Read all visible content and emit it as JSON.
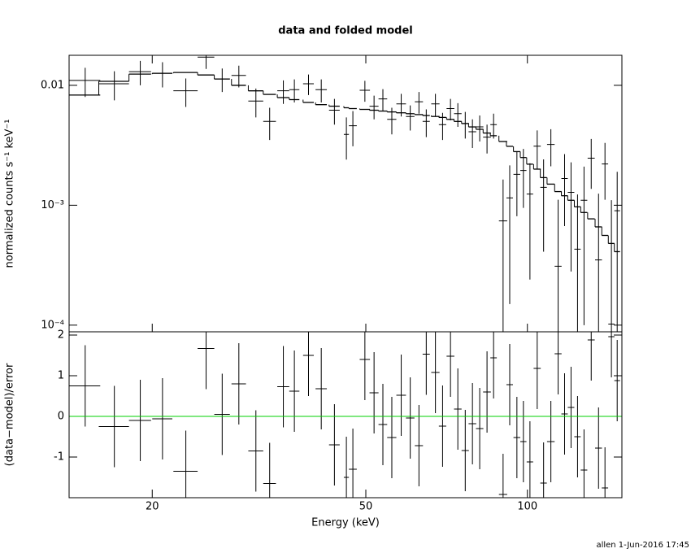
{
  "chart_data": [
    {
      "type": "errorbar",
      "title": "data and folded model",
      "ylabel": "normalized counts s⁻¹ keV⁻¹",
      "log_x": true,
      "log_y": true,
      "ylim": [
        8.8e-05,
        0.0178
      ],
      "yticks": [
        {
          "value": 0.01,
          "label": "0.01"
        },
        {
          "value": 0.001,
          "label": "10⁻³"
        },
        {
          "value": 0.0001,
          "label": "10⁻⁴"
        }
      ],
      "color": "#000000",
      "model_color": "#000000",
      "x": [
        15.0,
        17.0,
        19.0,
        20.9,
        23.1,
        25.2,
        27.0,
        29.0,
        31.2,
        33.1,
        35.1,
        36.8,
        39.1,
        41.3,
        43.7,
        46.0,
        47.3,
        49.8,
        51.8,
        53.8,
        55.9,
        58.2,
        60.5,
        62.8,
        64.8,
        67.4,
        69.5,
        71.9,
        74.2,
        76.6,
        79.0,
        81.5,
        84.1,
        86.5,
        90.1,
        92.7,
        95.6,
        98.3,
        101.1,
        104.3,
        107.2,
        110.6,
        114.1,
        117.3,
        120.6,
        124.0,
        127.5,
        131.5,
        135.7,
        139.5,
        143.4,
        147.0
      ],
      "xerr": [
        1.0,
        1.1,
        0.9,
        0.9,
        1.2,
        0.9,
        0.9,
        0.9,
        1.0,
        0.9,
        0.9,
        0.8,
        0.9,
        1.0,
        1.0,
        0.5,
        0.8,
        1.1,
        1.0,
        1.0,
        1.1,
        1.2,
        1.1,
        1.1,
        1.0,
        1.2,
        1.1,
        1.2,
        1.2,
        1.2,
        1.3,
        1.3,
        1.4,
        1.2,
        1.6,
        1.3,
        1.4,
        1.3,
        1.4,
        1.6,
        1.5,
        1.8,
        1.7,
        1.6,
        1.7,
        1.7,
        1.8,
        2.0,
        2.0,
        1.9,
        1.9,
        1.8
      ],
      "values": [
        0.011,
        0.0103,
        0.013,
        0.0126,
        0.009,
        0.0172,
        0.0113,
        0.0121,
        0.0074,
        0.005,
        0.009,
        0.0092,
        0.0103,
        0.0092,
        0.0062,
        0.0039,
        0.0046,
        0.0091,
        0.0067,
        0.0077,
        0.0052,
        0.007,
        0.0055,
        0.0073,
        0.005,
        0.007,
        0.0047,
        0.0064,
        0.0058,
        0.0048,
        0.0041,
        0.0045,
        0.0037,
        0.0047,
        0.00074,
        0.00115,
        0.00181,
        0.00195,
        0.00124,
        0.00311,
        0.00141,
        0.00321,
        0.00031,
        0.00167,
        0.00128,
        0.00043,
        0.0011,
        0.00247,
        0.00035,
        0.00221,
        0.000102,
        0.0009
      ],
      "errors": [
        0.003,
        0.0028,
        0.003,
        0.003,
        0.0024,
        0.0035,
        0.0025,
        0.0025,
        0.002,
        0.0015,
        0.002,
        0.002,
        0.002,
        0.002,
        0.0015,
        0.0015,
        0.0015,
        0.0018,
        0.0015,
        0.0016,
        0.0013,
        0.0015,
        0.0013,
        0.0015,
        0.0013,
        0.0015,
        0.0012,
        0.0013,
        0.0013,
        0.0012,
        0.0011,
        0.0011,
        0.001,
        0.0011,
        0.0009,
        0.001,
        0.001,
        0.001,
        0.001,
        0.0011,
        0.001,
        0.0011,
        0.0008,
        0.001,
        0.001,
        0.0008,
        0.001,
        0.0011,
        0.0009,
        0.0011,
        0.001,
        0.001
      ],
      "model_values": [
        0.0083,
        0.0108,
        0.0124,
        0.0126,
        0.0128,
        0.0122,
        0.0113,
        0.01,
        0.009,
        0.0084,
        0.0079,
        0.0076,
        0.0072,
        0.0069,
        0.0067,
        0.0065,
        0.0064,
        0.0063,
        0.0062,
        0.0061,
        0.006,
        0.0059,
        0.0058,
        0.0057,
        0.0056,
        0.0055,
        0.0054,
        0.0052,
        0.005,
        0.0048,
        0.0045,
        0.0043,
        0.004,
        0.0038,
        0.0034,
        0.0031,
        0.0028,
        0.0025,
        0.0022,
        0.002,
        0.0017,
        0.0015,
        0.0013,
        0.0012,
        0.0011,
        0.00097,
        0.00087,
        0.00077,
        0.00066,
        0.00056,
        0.00048,
        0.00041
      ]
    },
    {
      "type": "errorbar",
      "xlabel": "Energy (keV)",
      "ylabel": "(data−model)/error",
      "log_x": true,
      "xlim": [
        14,
        150
      ],
      "xticks": [
        20,
        50,
        100
      ],
      "ylim": [
        -2,
        2.08
      ],
      "yticks": [
        2,
        1,
        0,
        -1
      ],
      "color": "#000000",
      "zero_line_color": "#00d000",
      "values": [
        0.75,
        -0.25,
        -0.1,
        -0.06,
        -1.35,
        1.67,
        0.05,
        0.8,
        -0.85,
        -1.65,
        0.73,
        0.62,
        1.5,
        0.68,
        -0.7,
        -1.5,
        -1.3,
        1.4,
        0.58,
        -0.2,
        -0.52,
        0.52,
        -0.04,
        -0.72,
        1.53,
        1.08,
        -0.24,
        1.48,
        0.18,
        -0.84,
        -0.18,
        -0.3,
        0.6,
        1.44,
        -1.92,
        0.78,
        -0.52,
        -0.62,
        -1.12,
        1.18,
        -1.64,
        -0.62,
        1.54,
        0.06,
        0.22,
        -0.5,
        -1.32,
        1.88,
        -0.78,
        -1.76,
        1.96,
        0.88
      ],
      "errors": [
        1,
        1,
        1,
        1,
        1,
        1,
        1,
        1,
        1,
        1,
        1,
        1,
        1,
        1,
        1,
        1,
        1,
        1,
        1,
        1,
        1,
        1,
        1,
        1,
        1,
        1,
        1,
        1,
        1,
        1,
        1,
        1,
        1,
        1,
        1,
        1,
        1,
        1,
        1,
        1,
        1,
        1,
        1,
        1,
        1,
        1,
        1,
        1,
        1,
        1,
        1,
        1
      ]
    },
    {
      "type": "footer",
      "text": "allen  1-Jun-2016 17:45"
    }
  ]
}
